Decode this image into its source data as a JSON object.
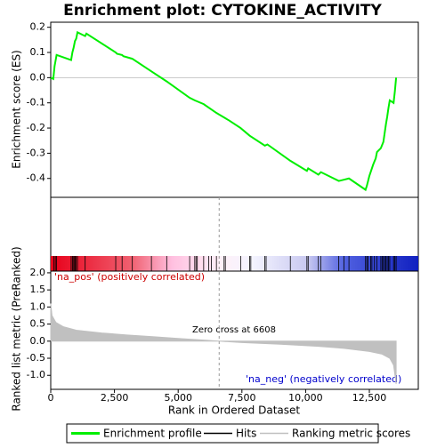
{
  "chart_data": {
    "type": "gsea",
    "title": "Enrichment plot: CYTOKINE_ACTIVITY",
    "xlabel": "Rank in Ordered Dataset",
    "xlim": [
      0,
      14420
    ],
    "xticks": [
      0,
      {
        "value": 2500,
        "label": "2,500"
      },
      {
        "value": 5000,
        "label": "5,000"
      },
      {
        "value": 7500,
        "label": "7,500"
      },
      {
        "value": 10000,
        "label": "10,000"
      },
      {
        "value": 12500,
        "label": "12,500"
      }
    ],
    "es": {
      "ylabel": "Enrichment score (ES)",
      "color": "#00ee00",
      "ylim": [
        -0.475,
        0.22
      ],
      "yticks": [
        -0.4,
        -0.3,
        -0.2,
        -0.1,
        {
          "value": 0,
          "label": "0.0"
        },
        0.1,
        0.2
      ],
      "x": [
        0,
        100,
        150,
        230,
        800,
        850,
        900,
        950,
        1000,
        1050,
        1350,
        1400,
        2550,
        2600,
        2800,
        2850,
        3200,
        3950,
        4550,
        5450,
        5650,
        6000,
        6500,
        7000,
        7450,
        7800,
        8400,
        8500,
        9400,
        10050,
        10100,
        10500,
        10600,
        11300,
        11500,
        11700,
        12350,
        12400,
        12450,
        12500,
        12550,
        12650,
        12750,
        12800,
        12950,
        13050,
        13100,
        13150,
        13200,
        13250,
        13300,
        13450,
        13500,
        13550
      ],
      "values": [
        0,
        -0.005,
        0.045,
        0.09,
        0.07,
        0.1,
        0.12,
        0.145,
        0.155,
        0.18,
        0.165,
        0.175,
        0.1,
        0.095,
        0.09,
        0.085,
        0.075,
        0.025,
        -0.015,
        -0.08,
        -0.09,
        -0.105,
        -0.14,
        -0.17,
        -0.2,
        -0.23,
        -0.27,
        -0.265,
        -0.33,
        -0.37,
        -0.36,
        -0.385,
        -0.375,
        -0.41,
        -0.405,
        -0.4,
        -0.445,
        -0.43,
        -0.41,
        -0.39,
        -0.375,
        -0.345,
        -0.32,
        -0.295,
        -0.28,
        -0.255,
        -0.22,
        -0.185,
        -0.155,
        -0.12,
        -0.09,
        -0.1,
        -0.055,
        0.0
      ],
      "hits": [
        120,
        180,
        230,
        800,
        850,
        880,
        920,
        960,
        1000,
        1050,
        1350,
        2550,
        2800,
        3200,
        3950,
        4550,
        5450,
        5650,
        5700,
        5750,
        6000,
        6200,
        6300,
        6500,
        6800,
        6850,
        7450,
        7800,
        7850,
        8400,
        8450,
        9400,
        10050,
        10100,
        10500,
        10600,
        11300,
        11500,
        11700,
        12350,
        12400,
        12450,
        12550,
        12600,
        12700,
        12800,
        12950,
        13000,
        13050,
        13100,
        13150,
        13200,
        13250,
        13300,
        13450,
        13500,
        13550
      ]
    },
    "metric": {
      "ylabel": "Ranked list metric (PreRanked)",
      "color": "#c0c0c0",
      "ylim": [
        -1.41,
        2.05
      ],
      "yticks": [
        {
          "value": -1,
          "label": "-1.0"
        },
        -0.5,
        {
          "value": 0,
          "label": "0.0"
        },
        0.5,
        {
          "value": 1,
          "label": "1.0"
        },
        1.5,
        {
          "value": 2,
          "label": "2.0"
        }
      ],
      "x": [
        0,
        50,
        200,
        500,
        1000,
        2000,
        3000,
        4000,
        5000,
        6000,
        6608,
        7500,
        9000,
        10500,
        11500,
        12500,
        13000,
        13300,
        13450,
        13550
      ],
      "values": [
        1.1,
        0.75,
        0.55,
        0.42,
        0.32,
        0.24,
        0.18,
        0.13,
        0.08,
        0.03,
        0,
        -0.04,
        -0.09,
        -0.15,
        -0.21,
        -0.3,
        -0.38,
        -0.5,
        -0.7,
        -1.25
      ]
    },
    "zero_cross": 6608,
    "annotations": {
      "pos": "'na_pos' (positively correlated)",
      "zero": "Zero cross at 6608",
      "neg": "'na_neg' (negatively correlated)"
    },
    "legend": [
      "Enrichment profile",
      "Hits",
      "Ranking metric scores"
    ]
  }
}
